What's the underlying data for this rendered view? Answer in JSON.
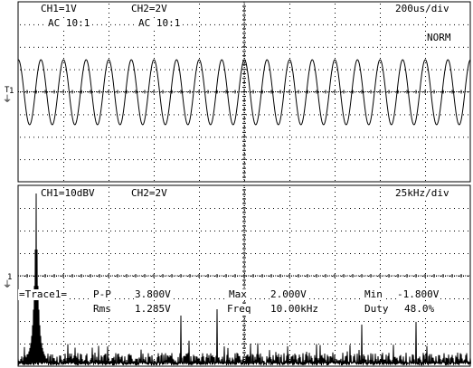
{
  "top_panel": {
    "ch1_scale": "CH1=1V",
    "ch1_coupling": "AC 10:1",
    "ch2_scale": "CH2=2V",
    "ch2_coupling": "AC 10:1",
    "timebase": "200us/div",
    "trigger_mode": "NORM",
    "channel_marker": "1",
    "trigger_marker": "T"
  },
  "bottom_panel": {
    "ch1_scale": "CH1=10dBV",
    "ch2_scale": "CH2=2V",
    "freq_span": "25kHz/div",
    "channel_marker": "1"
  },
  "measurements": {
    "trace_label": "=Trace1=",
    "pp_label": "P-P",
    "pp_value": "3.800V",
    "max_label": "Max",
    "max_value": "2.000V",
    "min_label": "Min",
    "min_value": "-1.800V",
    "rms_label": "Rms",
    "rms_value": "1.285V",
    "freq_label": "Freq",
    "freq_value": "10.00kHz",
    "duty_label": "Duty",
    "duty_value": "48.0%"
  },
  "colors": {
    "background": "#ffffff",
    "trace": "#000000",
    "grid": "#000000"
  },
  "waveform": {
    "frequency_hz": 10000,
    "amplitude_v": 1.9
  }
}
